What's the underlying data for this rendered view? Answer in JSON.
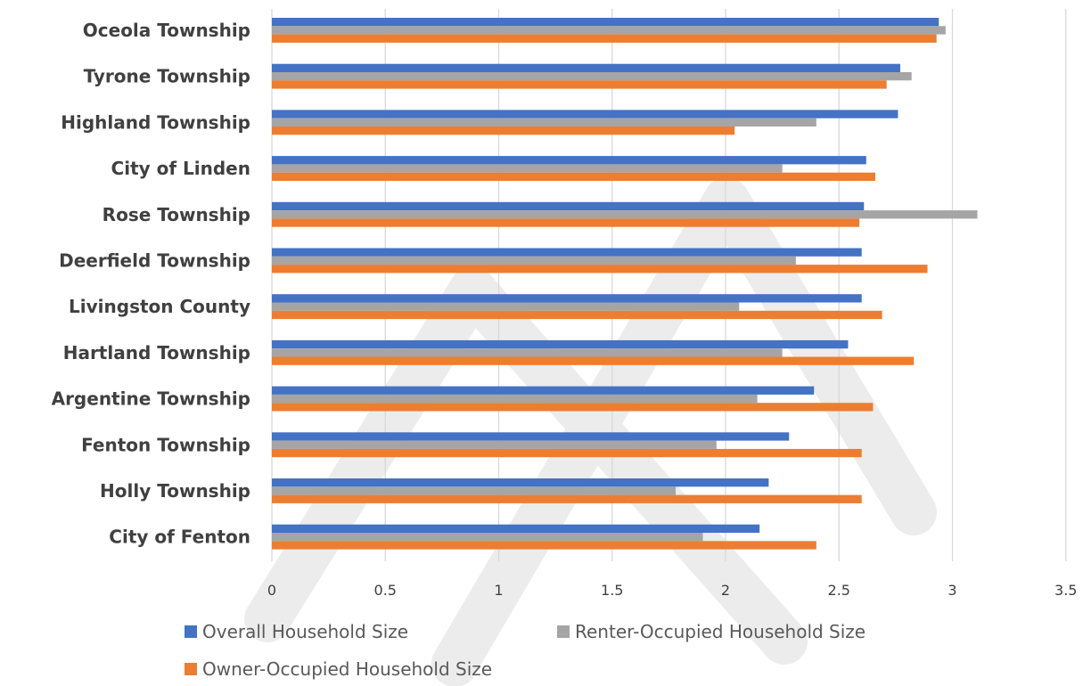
{
  "chart_data": {
    "type": "bar",
    "orientation": "horizontal",
    "categories": [
      "Oceola Township",
      "Tyrone Township",
      "Highland Township",
      "City of Linden",
      "Rose Township",
      "Deerfield Township",
      "Livingston County",
      "Hartland Township",
      "Argentine Township",
      "Fenton Township",
      "Holly Township",
      "City of Fenton"
    ],
    "series": [
      {
        "name": "Overall Household Size",
        "color": "#4472c4",
        "values": [
          2.94,
          2.77,
          2.76,
          2.62,
          2.61,
          2.6,
          2.6,
          2.54,
          2.39,
          2.28,
          2.19,
          2.15
        ]
      },
      {
        "name": "Renter-Occupied Household Size",
        "color": "#a5a5a5",
        "values": [
          2.97,
          2.82,
          2.4,
          2.25,
          3.11,
          2.31,
          2.06,
          2.25,
          2.14,
          1.96,
          1.78,
          1.9
        ]
      },
      {
        "name": "Owner-Occupied Household Size",
        "color": "#ed7d31",
        "values": [
          2.93,
          2.71,
          2.04,
          2.66,
          2.59,
          2.89,
          2.69,
          2.83,
          2.65,
          2.6,
          2.6,
          2.4
        ]
      }
    ],
    "xlim": [
      0,
      3.5
    ],
    "ticks": [
      "0",
      "0.5",
      "1",
      "1.5",
      "2",
      "2.5",
      "3",
      "3.5"
    ],
    "tick_values": [
      0,
      0.5,
      1,
      1.5,
      2,
      2.5,
      3,
      3.5
    ],
    "grid": true,
    "legend_position": "bottom",
    "title": "",
    "xlabel": "",
    "ylabel": ""
  }
}
